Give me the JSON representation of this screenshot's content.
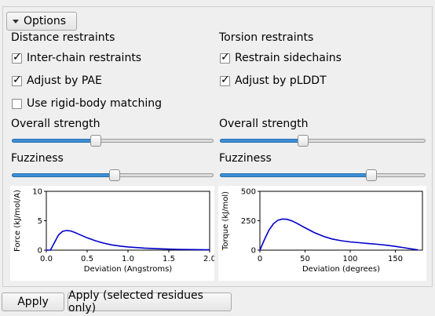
{
  "options": {
    "label": "Options"
  },
  "distance": {
    "heading": "Distance restraints",
    "interchain": {
      "label": "Inter-chain restraints",
      "checked": true
    },
    "pae": {
      "label": "Adjust by PAE",
      "checked": true
    },
    "rigid": {
      "label": "Use rigid-body matching",
      "checked": false
    },
    "strength": {
      "label": "Overall strength",
      "value": 0.41
    },
    "fuzziness": {
      "label": "Fuzziness",
      "value": 0.51
    }
  },
  "torsion": {
    "heading": "Torsion restraints",
    "sidechains": {
      "label": "Restrain sidechains",
      "checked": true
    },
    "plddt": {
      "label": "Adjust by pLDDT",
      "checked": true
    },
    "strength": {
      "label": "Overall strength",
      "value": 0.4
    },
    "fuzziness": {
      "label": "Fuzziness",
      "value": 0.75
    }
  },
  "buttons": {
    "apply": "Apply",
    "apply_selected": "Apply (selected residues only)"
  },
  "colors": {
    "accent": "#3c8fd6",
    "curve": "#0000cc"
  },
  "chart_data": [
    {
      "type": "line",
      "xlabel": "Deviation (Angstroms)",
      "ylabel": "Force (kJ/mol/A)",
      "xlim": [
        0,
        2.0
      ],
      "ylim": [
        0,
        10
      ],
      "xticks": [
        "0.0",
        "0.5",
        "1.0",
        "1.5",
        "2.0"
      ],
      "yticks": [
        "0",
        "5",
        "10"
      ],
      "x": [
        0.0,
        0.05,
        0.1,
        0.15,
        0.2,
        0.25,
        0.3,
        0.35,
        0.4,
        0.5,
        0.6,
        0.7,
        0.8,
        0.9,
        1.0,
        1.2,
        1.4,
        1.6,
        1.8,
        2.0
      ],
      "y": [
        0.0,
        0.0,
        1.3,
        2.6,
        3.2,
        3.35,
        3.25,
        3.0,
        2.7,
        2.1,
        1.6,
        1.2,
        0.9,
        0.7,
        0.55,
        0.35,
        0.22,
        0.14,
        0.09,
        0.05
      ]
    },
    {
      "type": "line",
      "xlabel": "Deviation (degrees)",
      "ylabel": "Torque (kJ/mol)",
      "xlim": [
        0,
        180
      ],
      "ylim": [
        0,
        500
      ],
      "xticks": [
        "0",
        "50",
        "100",
        "150"
      ],
      "yticks": [
        "0",
        "250",
        "500"
      ],
      "x": [
        0,
        5,
        10,
        15,
        20,
        25,
        30,
        35,
        40,
        50,
        60,
        70,
        80,
        90,
        100,
        110,
        120,
        130,
        140,
        150,
        160,
        170,
        175
      ],
      "y": [
        0,
        90,
        170,
        225,
        255,
        265,
        262,
        250,
        232,
        190,
        150,
        118,
        95,
        80,
        70,
        63,
        56,
        50,
        42,
        32,
        20,
        8,
        2
      ]
    }
  ]
}
